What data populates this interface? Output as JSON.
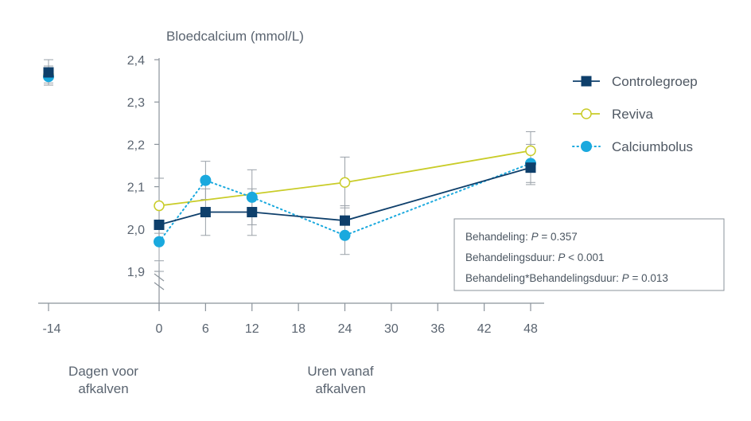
{
  "chart_data": {
    "type": "line",
    "title": "Bloedcalcium (mmol/L)",
    "ylim": [
      1.9,
      2.4
    ],
    "y_ticks": [
      "2,4",
      "2,3",
      "2,2",
      "2,1",
      "2,0",
      "1,9"
    ],
    "y_tick_values": [
      2.4,
      2.3,
      2.2,
      2.1,
      2.0,
      1.9
    ],
    "x_ticks": [
      0,
      6,
      12,
      18,
      24,
      30,
      36,
      42,
      48
    ],
    "x_ticks_pre": [
      -14
    ],
    "xlabel_pre": [
      "Dagen voor",
      "afkalven"
    ],
    "xlabel_post": [
      "Uren vanaf",
      "afkalven"
    ],
    "axis_break": true,
    "legend_position": "right",
    "series": [
      {
        "name": "Controlegroep",
        "color": "#0e3f6b",
        "marker": "filled-square",
        "line": "solid",
        "pre": {
          "x": -14,
          "y": 2.37,
          "err": 0.03
        },
        "x": [
          0,
          6,
          12,
          24,
          48
        ],
        "values": [
          2.01,
          2.04,
          2.04,
          2.02,
          2.145
        ],
        "err": [
          0.11,
          0.055,
          0.055,
          0.035,
          0.04
        ]
      },
      {
        "name": "Reviva",
        "color": "#c9cc28",
        "marker": "open-circle",
        "line": "solid",
        "pre": {
          "x": -14,
          "y": 2.365,
          "err": 0.02
        },
        "x": [
          0,
          24,
          48
        ],
        "values": [
          2.055,
          2.11,
          2.185
        ],
        "err": [
          0.065,
          0.06,
          0.045
        ]
      },
      {
        "name": "Calciumbolus",
        "color": "#1aa9de",
        "marker": "filled-circle",
        "line": "dotted",
        "pre": {
          "x": -14,
          "y": 2.36,
          "err": 0.02
        },
        "x": [
          0,
          6,
          12,
          24,
          48
        ],
        "values": [
          1.97,
          2.115,
          2.075,
          1.985,
          2.155
        ],
        "err": [
          0.045,
          0.045,
          0.065,
          0.045,
          0.045
        ]
      }
    ],
    "annotations": [
      {
        "parts": [
          {
            "text": "Behandeling: "
          },
          {
            "text": "P",
            "italic": true
          },
          {
            "text": " = 0.357"
          }
        ]
      },
      {
        "parts": [
          {
            "text": "Behandelingsduur: "
          },
          {
            "text": "P",
            "italic": true
          },
          {
            "text": " < 0.001"
          }
        ]
      },
      {
        "parts": [
          {
            "text": "Behandeling*Behandelingsduur: "
          },
          {
            "text": "P",
            "italic": true
          },
          {
            "text": " = 0.013"
          }
        ]
      }
    ]
  }
}
